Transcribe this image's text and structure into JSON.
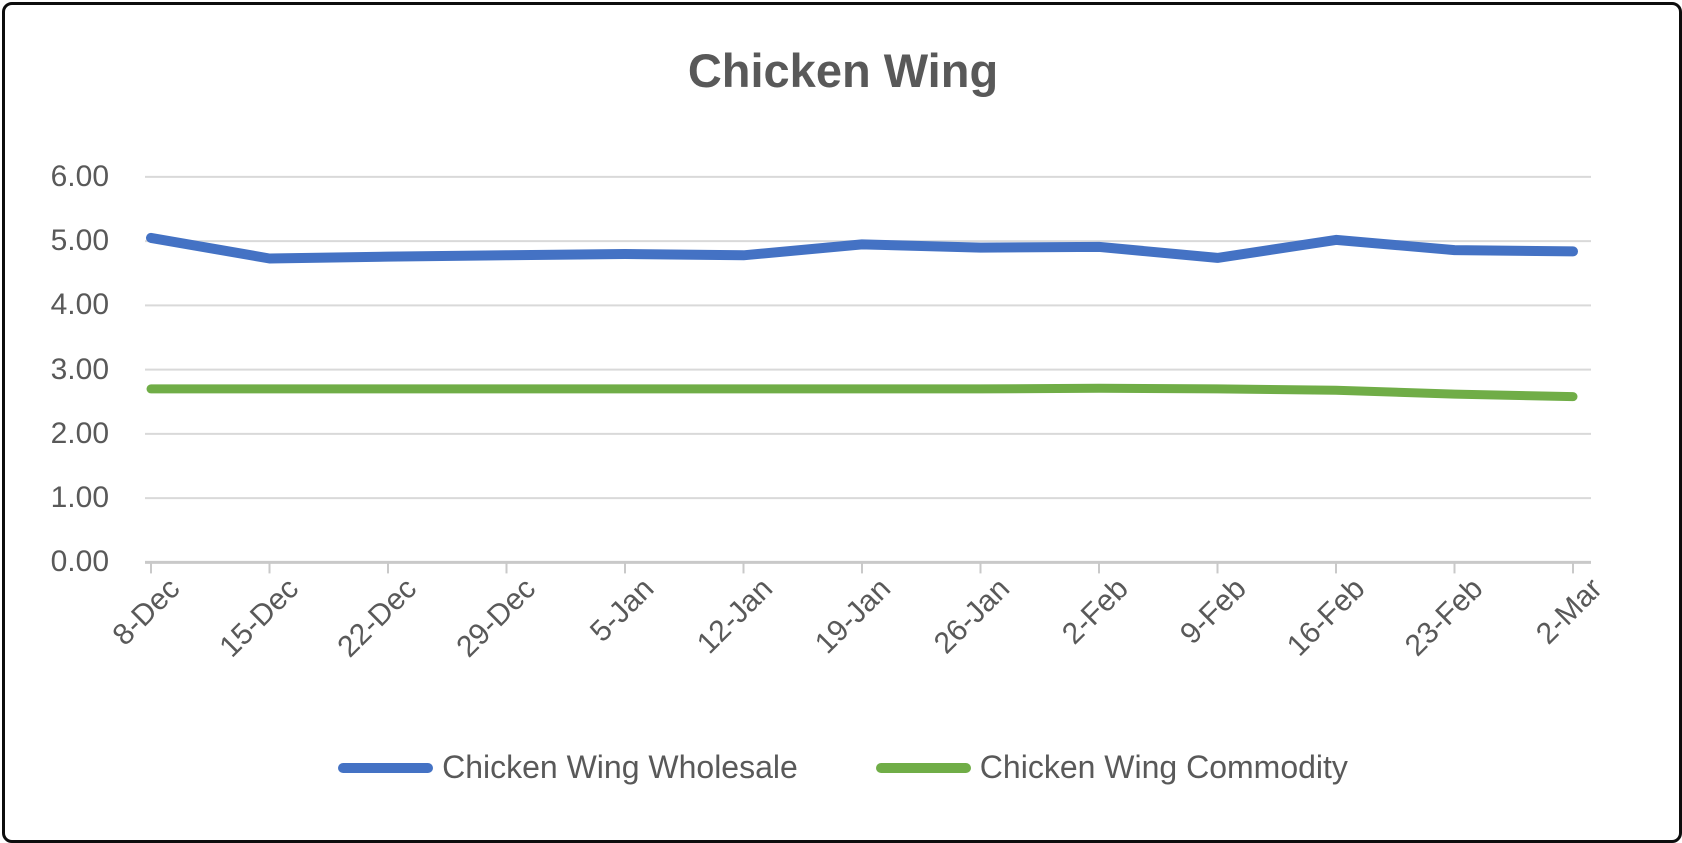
{
  "chart_data": {
    "type": "line",
    "title": "Chicken Wing",
    "categories": [
      "8-Dec",
      "15-Dec",
      "22-Dec",
      "29-Dec",
      "5-Jan",
      "12-Jan",
      "19-Jan",
      "26-Jan",
      "2-Feb",
      "9-Feb",
      "16-Feb",
      "23-Feb",
      "2-Mar"
    ],
    "series": [
      {
        "name": "Chicken Wing Wholesale",
        "color": "#4472C4",
        "values": [
          5.05,
          4.73,
          4.76,
          4.78,
          4.8,
          4.78,
          4.95,
          4.9,
          4.91,
          4.74,
          5.02,
          4.86,
          4.84
        ]
      },
      {
        "name": "Chicken Wing Commodity",
        "color": "#70AD47",
        "values": [
          2.7,
          2.7,
          2.7,
          2.7,
          2.7,
          2.7,
          2.7,
          2.7,
          2.71,
          2.7,
          2.68,
          2.62,
          2.58
        ]
      }
    ],
    "ylim": [
      0,
      6
    ],
    "ytick_step": 1,
    "ytick_labels": [
      "0.00",
      "1.00",
      "2.00",
      "3.00",
      "4.00",
      "5.00",
      "6.00"
    ],
    "grid": true,
    "legend_position": "bottom"
  },
  "colors": {
    "text": "#595959",
    "gridline": "#D9D9D9",
    "axis_line": "#C9C9C9",
    "frame_border": "#0d0d0d"
  }
}
